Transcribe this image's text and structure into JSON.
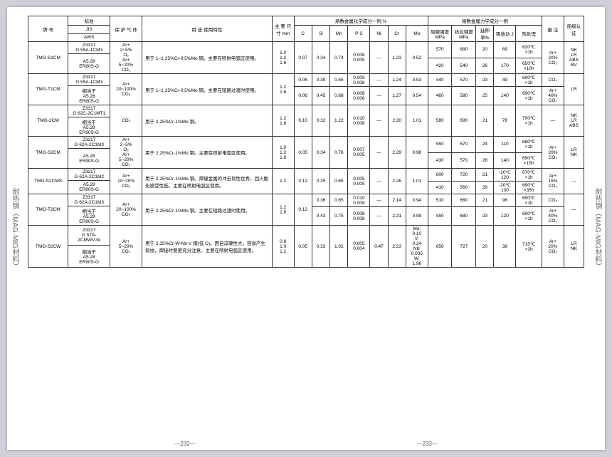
{
  "sideLabel": "耐热钢（MAG·MIG材料）",
  "headers": {
    "no": "牌 号",
    "std": "标准",
    "jis": "JIS",
    "aws": "AWS",
    "gas": "保 护 气 体",
    "use": "用 途·使用特性",
    "size": "主 要 尺 寸 mm",
    "chem": "熔敷金属化学成分一例 %",
    "c": "C",
    "si": "Si",
    "mn": "Mn",
    "ps": "P S",
    "ni": "Ni",
    "cr": "Cr",
    "mo": "Mo",
    "mech": "熔敷金属力学成分一例",
    "ys": "屈服强度 MPa",
    "ts": "抗拉强度 MPa",
    "el": "延伸 率%",
    "imp": "吸收功 J",
    "ht": "热处理",
    "note": "备 注",
    "apr": "船级认证"
  },
  "rows": [
    {
      "no": "TMG-S1CM",
      "jis": "Z3317\nG 55A-1CM3",
      "aws": "A5.28\nER80S-G",
      "gas": "Ar+\n2~5%\nO₂\nAr+\n5~20%\nCO₂",
      "use": "用于 1~1.25%Cr-0.5%Mo 钢。主要在喷射电弧区使用。",
      "size": "1.0\n1.2\n1.6",
      "c": "0.07",
      "si": "0.34",
      "mn": "0.74",
      "ps": "0.008\n0.005",
      "ni": "—",
      "cr": "1.23",
      "mo": "0.52",
      "sub": [
        {
          "ys": "570",
          "ts": "680",
          "el": "20",
          "imp": "69",
          "ht": "620℃\n×1h"
        },
        {
          "ys": "420",
          "ts": "540",
          "el": "26",
          "imp": "170",
          "ht": "650℃\n×10h"
        }
      ],
      "note": "Ar+\n20%\nCO₂",
      "apr": "NK\nLR\nABS\nBV"
    },
    {
      "no": "TMG-T1CM",
      "jis": "Z3317\nG 55A-1CM3",
      "aws": "相当于\nA5.28\nER80S-G",
      "gas": "Ar+\n20~100%\nCO₂",
      "use": "用于 1~1.25%Cr-0.5%Mo 钢。主要在短路过渡时使用。",
      "size": "1.2\n1.6",
      "sub": [
        {
          "c": "0.06",
          "si": "0.39",
          "mn": "0.65",
          "ps": "0.009\n0.008",
          "ni": "—",
          "cr": "1.24",
          "mo": "0.53",
          "ys": "440",
          "ts": "570",
          "el": "23",
          "imp": "49",
          "ht": "690℃\n×1h",
          "note": "CO₂"
        },
        {
          "c": "0.06",
          "si": "0.45",
          "mn": "0.68",
          "ps": "0.008\n0.006",
          "ni": "—",
          "cr": "1.27",
          "mo": "0.54",
          "ys": "460",
          "ts": "580",
          "el": "25",
          "imp": "140",
          "ht": "690℃\n×1h",
          "note": "Ar+\n40%\nCO₂"
        }
      ],
      "apr": "LR"
    },
    {
      "no": "TMG-2CM",
      "jis": "Z3317\nG 62C-2C1MT1",
      "aws": "相当于\nA5.28\nER90S-G",
      "gas": "CO₂",
      "use": "用于 2.25%Cr-1%Mo 钢。",
      "size": "1.2\n1.6",
      "c": "0.10",
      "si": "0.32",
      "mn": "1.22",
      "ps": "0.010\n0.008",
      "ni": "—",
      "cr": "2.30",
      "mo": "1.01",
      "ys": "580",
      "ts": "690",
      "el": "21",
      "imp": "78",
      "ht": "700℃\n×1h",
      "note": "—",
      "apr": "NK\nLR\nABS"
    },
    {
      "no": "TMG-S2CM",
      "jis": "Z3317\nG 62A-2C1M3",
      "aws": "A5.28\nER90S-G",
      "gas": "Ar+\n2~5%\nO₂\nAr+\n5~20%\nCO₂",
      "use": "用于 2.25%Cr-1%Mo 钢。主要在喷射电弧区使用。",
      "size": "1.0\n1.2\n1.6",
      "c": "0.05",
      "si": "0.34",
      "mn": "0.76",
      "ps": "0.007\n0.005",
      "ni": "—",
      "cr": "2.29",
      "mo": "0.98",
      "sub": [
        {
          "ys": "550",
          "ts": "670",
          "el": "24",
          "imp": "110",
          "ht": "680℃\n×1h"
        },
        {
          "ys": "430",
          "ts": "570",
          "el": "28",
          "imp": "140",
          "ht": "690℃\n×15h"
        }
      ],
      "note": "Ar+\n20%\nCO₂",
      "apr": "LR\nNK"
    },
    {
      "no": "TMG-S2CMS",
      "jis": "Z3317\nG 62A-2C1M2",
      "aws": "A5.28\nER90S-G",
      "gas": "Ar+\n10~20%\nCO₂",
      "use": "用于 2.25%Cr-1%Mo 钢。焊缝金属的冲击韧性优秀，回火脆化感受性低。主要在喷射电弧区使用。",
      "size": "1.2",
      "c": "0.12",
      "si": "0.25",
      "mn": "0.65",
      "ps": "0.005\n0.005",
      "ni": "—",
      "cr": "2.26",
      "mo": "1.01",
      "sub": [
        {
          "ys": "600",
          "ts": "720",
          "el": "21",
          "imp": "-20℃\n120",
          "ht": "670℃\n×1h"
        },
        {
          "ys": "410",
          "ts": "560",
          "el": "28",
          "imp": "-20℃\n130",
          "ht": "690℃\n×35h"
        }
      ],
      "note": "Ar+\n15%\nCO₂",
      "apr": "—"
    },
    {
      "no": "TMG-T2CM",
      "jis": "Z3317\nG 62A-2C1M3",
      "aws": "相当于\nA5.28\nER90S-G",
      "gas": "Ar+\n20~100%\nCO₂",
      "use": "用于 2.25%Cr-1%Mo 钢。主要在短路过渡时使用。",
      "size": "1.2\n1.6",
      "c": "0.12",
      "sub": [
        {
          "si": "0.36",
          "mn": "0.65",
          "ps": "0.010\n0.009",
          "ni": "—",
          "cr": "2.14",
          "mo": "0.94",
          "ys": "510",
          "ts": "660",
          "el": "21",
          "imp": "98",
          "ht": "690℃\n×1h",
          "note": "CO₂"
        },
        {
          "si": "0.43",
          "mn": "0.75",
          "ps": "0.008\n0.008",
          "ni": "—",
          "cr": "2.31",
          "mo": "0.99",
          "ys": "550",
          "ts": "680",
          "el": "23",
          "imp": "120",
          "ht": "690℃\n×1h",
          "note": "Ar+\n40%\nCO₂"
        }
      ],
      "apr": "—"
    },
    {
      "no": "TMG-S2CW",
      "jis": "Z3317\nG 57A-\n2CMWV-Ni",
      "aws": "相当于\nA5.28\nER90S-G",
      "gas": "Ar+\n5~20%\nCO₂",
      "use": "用于 2.25%Cr-W-Nb-V 钢(低 C)。因自淬硬性大，容易产生裂纹，焊接时要更充分注意。主要在喷射电弧区使用。",
      "size": "0.8\n1.0\n1.2",
      "c": "0.05",
      "si": "0.33",
      "mn": "1.02",
      "ps": "0.005\n0.004",
      "ni": "0.47",
      "cr": "2.23",
      "mo": "Mo:\n0.10\nV:\n0.24\nNb:\n0.035\nW:\n1.96",
      "ys": "656",
      "ts": "727",
      "el": "20",
      "imp": "38",
      "ht": "715℃\n×2h",
      "note": "Ar+\n20%\nCO₂",
      "apr": "LR\nNK"
    }
  ],
  "pg": {
    "l": "—232—",
    "r": "—233—"
  }
}
